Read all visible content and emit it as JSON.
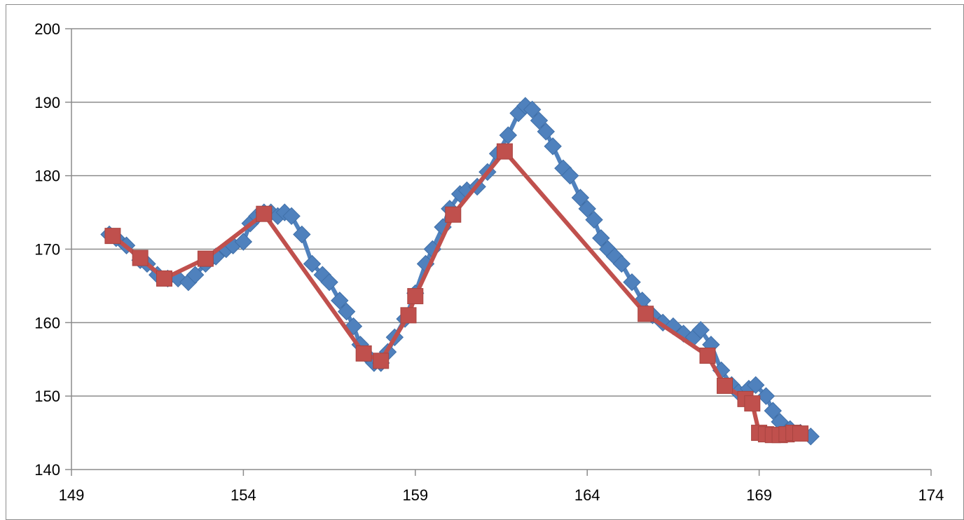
{
  "chart_data": {
    "type": "scatter",
    "title": "",
    "xlabel": "",
    "ylabel": "",
    "xlim": [
      149,
      174
    ],
    "ylim": [
      140,
      200
    ],
    "x_ticks": [
      "149",
      "154",
      "159",
      "164",
      "169",
      "174"
    ],
    "y_ticks": [
      "140",
      "150",
      "160",
      "170",
      "180",
      "190",
      "200"
    ],
    "grid": "horizontal",
    "legend": "none",
    "series": [
      {
        "marker": "diamond",
        "color": "#4F81BD",
        "x": [
          150.1,
          150.3,
          150.6,
          151.0,
          151.2,
          151.5,
          151.8,
          152.1,
          152.4,
          152.6,
          152.9,
          153.2,
          153.5,
          153.7,
          154.0,
          154.2,
          154.4,
          154.6,
          154.8,
          155.0,
          155.2,
          155.4,
          155.7,
          156.0,
          156.3,
          156.5,
          156.8,
          157.0,
          157.2,
          157.4,
          157.6,
          157.8,
          158.0,
          158.2,
          158.4,
          158.7,
          159.0,
          159.3,
          159.5,
          159.8,
          160.0,
          160.3,
          160.5,
          160.8,
          161.1,
          161.4,
          161.7,
          162.0,
          162.2,
          162.4,
          162.6,
          162.8,
          163.0,
          163.3,
          163.5,
          163.8,
          164.0,
          164.2,
          164.4,
          164.6,
          164.8,
          165.0,
          165.3,
          165.6,
          165.9,
          166.2,
          166.5,
          166.8,
          167.1,
          167.3,
          167.6,
          167.9,
          168.2,
          168.4,
          168.7,
          168.9,
          169.2,
          169.4,
          169.6,
          169.9,
          170.2,
          170.5
        ],
        "y": [
          172.0,
          171.5,
          170.5,
          168.5,
          168.0,
          166.5,
          166.0,
          166.0,
          165.5,
          166.5,
          168.0,
          169.0,
          170.0,
          170.5,
          171.0,
          173.5,
          174.5,
          175.0,
          175.0,
          174.5,
          175.0,
          174.5,
          172.0,
          168.0,
          166.5,
          165.5,
          163.0,
          161.5,
          159.5,
          157.0,
          155.5,
          154.5,
          154.5,
          156.0,
          158.0,
          160.5,
          164.0,
          168.0,
          170.0,
          173.0,
          175.5,
          177.5,
          178.0,
          178.5,
          180.5,
          183.0,
          185.5,
          188.5,
          189.5,
          189.0,
          187.5,
          186.0,
          184.0,
          181.0,
          180.0,
          177.0,
          175.5,
          174.0,
          171.5,
          170.0,
          169.0,
          168.0,
          165.5,
          163.0,
          161.0,
          160.0,
          159.5,
          158.5,
          158.0,
          159.0,
          157.0,
          153.5,
          151.5,
          150.5,
          151.0,
          151.5,
          150.0,
          148.0,
          146.5,
          145.5,
          145.0,
          144.5
        ]
      },
      {
        "marker": "square",
        "color": "#C0504D",
        "x": [
          150.2,
          151.0,
          151.7,
          152.9,
          154.6,
          157.5,
          158.0,
          158.8,
          159.0,
          160.1,
          161.6,
          165.7,
          167.5,
          168.0,
          168.6,
          168.8,
          169.0,
          169.2,
          169.4,
          169.6,
          169.8,
          170.0,
          170.2
        ],
        "y": [
          171.8,
          168.8,
          166.0,
          168.7,
          174.8,
          155.8,
          154.8,
          161.0,
          163.6,
          174.7,
          183.3,
          161.2,
          155.5,
          151.4,
          149.6,
          149.0,
          145.0,
          144.8,
          144.7,
          144.7,
          144.8,
          145.0,
          144.9
        ]
      }
    ]
  }
}
